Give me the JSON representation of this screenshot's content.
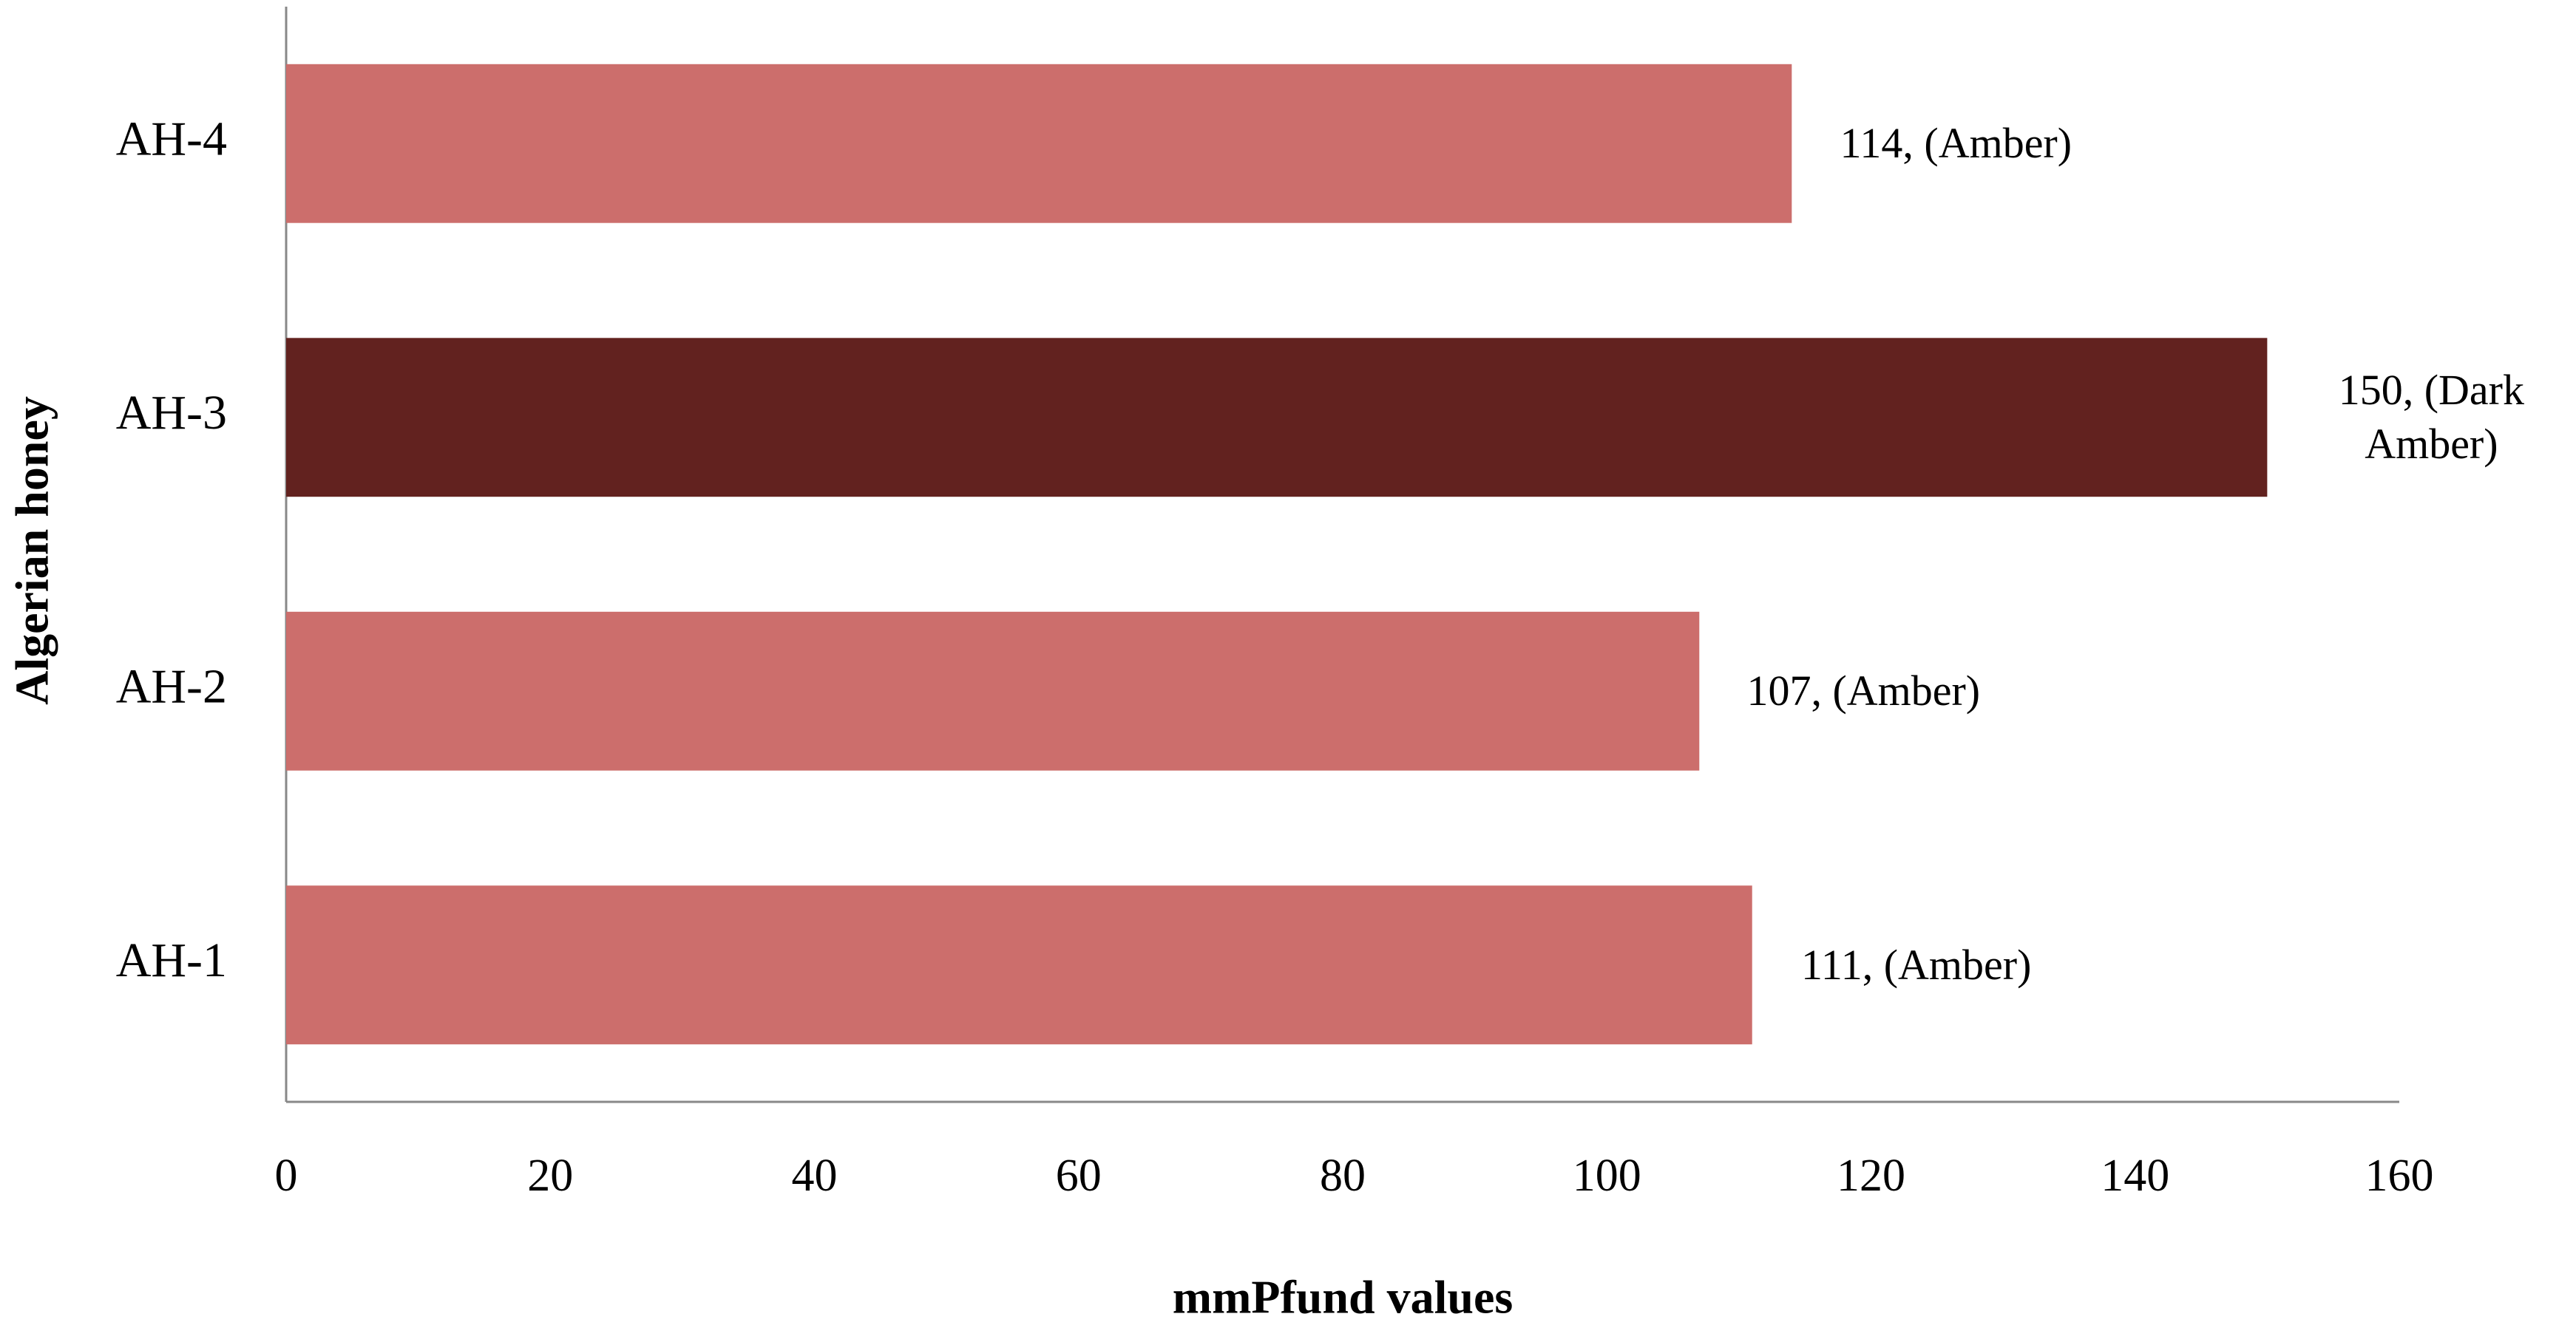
{
  "chart_data": {
    "type": "barh",
    "xlabel": "mmPfund values",
    "ylabel": "Algerian honey",
    "categories": [
      "AH-1",
      "AH-2",
      "AH-3",
      "AH-4"
    ],
    "values": [
      111,
      107,
      150,
      114
    ],
    "value_labels": [
      "111, (Amber)",
      "107, (Amber)",
      "150, (Dark Amber)",
      "114, (Amber)"
    ],
    "colors": [
      "#cc6e6c",
      "#cc6e6c",
      "#62221f",
      "#cc6e6c"
    ],
    "xlim": [
      0,
      160
    ],
    "xticks": [
      0,
      20,
      40,
      60,
      80,
      100,
      120,
      140,
      160
    ],
    "grid": false
  }
}
